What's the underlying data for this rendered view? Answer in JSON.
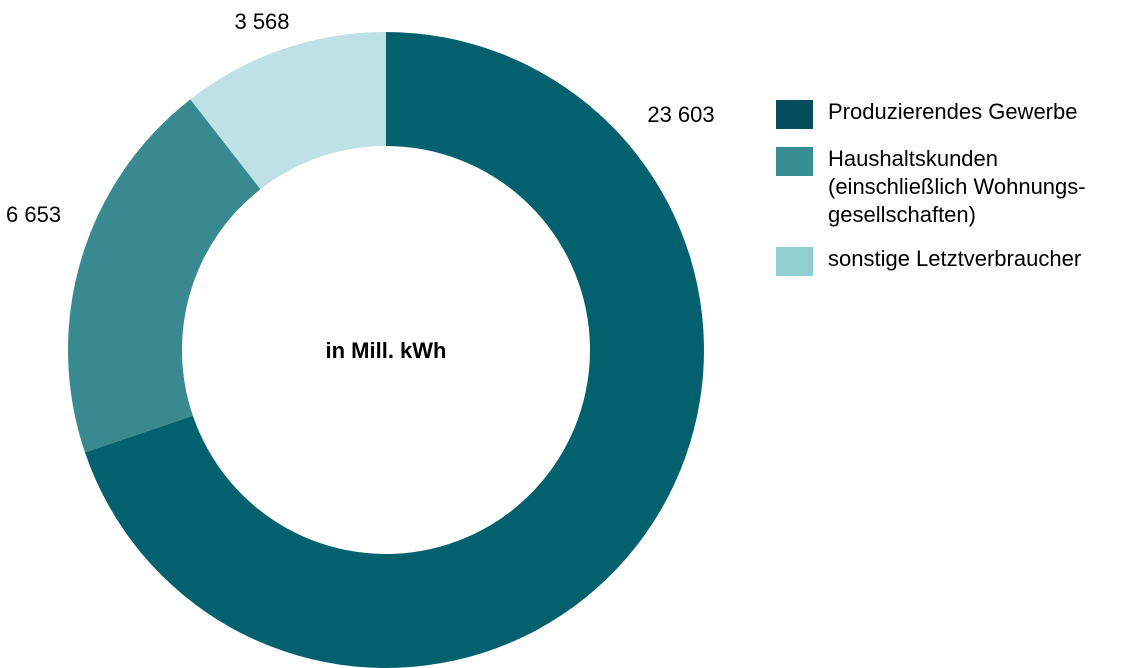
{
  "chart_data": {
    "type": "pie",
    "style": "donut",
    "center_label": "in Mill. kWh",
    "legend_position": "right",
    "categories": [
      "Produzierendes Gewerbe",
      "Haushaltskunden\n(einschließlich Wohnungs-\ngesellschaften)",
      "sonstige Letztverbraucher"
    ],
    "values": [
      23603,
      6653,
      3568
    ],
    "value_labels": [
      "23 603",
      "6 653",
      "3 568"
    ],
    "slice_colors": [
      "#03606d",
      "#388a90",
      "#bde1e4"
    ],
    "legend_colors": [
      "#064e5c",
      "#368d92",
      "#8fcfd0"
    ]
  }
}
